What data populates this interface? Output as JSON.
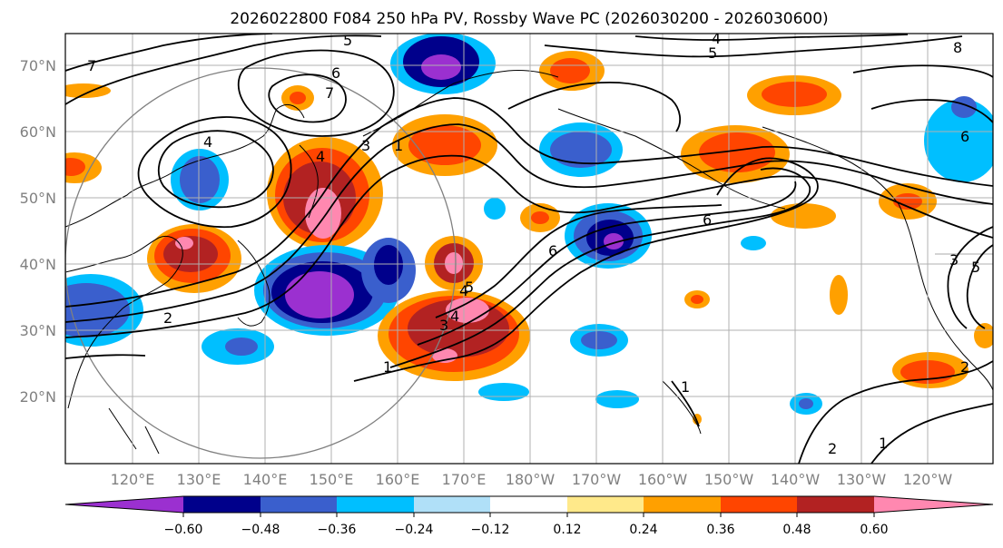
{
  "figure": {
    "title": "2026022800 F084 250 hPa PV, Rossby Wave PC (2026030200 - 2026030600)"
  },
  "axes": {
    "lat_labels": [
      "70°N",
      "60°N",
      "50°N",
      "40°N",
      "30°N",
      "20°N"
    ],
    "lon_labels": [
      "120°E",
      "130°E",
      "140°E",
      "150°E",
      "160°E",
      "170°E",
      "180°W",
      "170°W",
      "160°W",
      "150°W",
      "140°W",
      "130°W",
      "120°W"
    ]
  },
  "contour_labels": [
    "7",
    "5",
    "6",
    "7",
    "4",
    "4",
    "3",
    "1",
    "4",
    "4",
    "5",
    "3",
    "2",
    "1",
    "6",
    "6",
    "4",
    "5",
    "8",
    "6",
    "5",
    "2",
    "1",
    "1",
    "2",
    "3"
  ],
  "colorbar": {
    "ticks": [
      "−0.60",
      "−0.48",
      "−0.36",
      "−0.24",
      "−0.12",
      "0.12",
      "0.24",
      "0.36",
      "0.48",
      "0.60"
    ],
    "bins": [
      {
        "color": "#9b30d0"
      },
      {
        "color": "#00008b"
      },
      {
        "color": "#3a5fcd"
      },
      {
        "color": "#00bfff"
      },
      {
        "color": "#b0e0f8"
      },
      {
        "color": "#ffffff"
      },
      {
        "color": "#ffe98a"
      },
      {
        "color": "#ffa000"
      },
      {
        "color": "#ff4500"
      },
      {
        "color": "#b22222"
      },
      {
        "color": "#ff88b0"
      }
    ]
  },
  "style": {
    "tick_label_color": "#808080",
    "grid_color": "#b0b0b0",
    "contour_color": "#000000"
  }
}
